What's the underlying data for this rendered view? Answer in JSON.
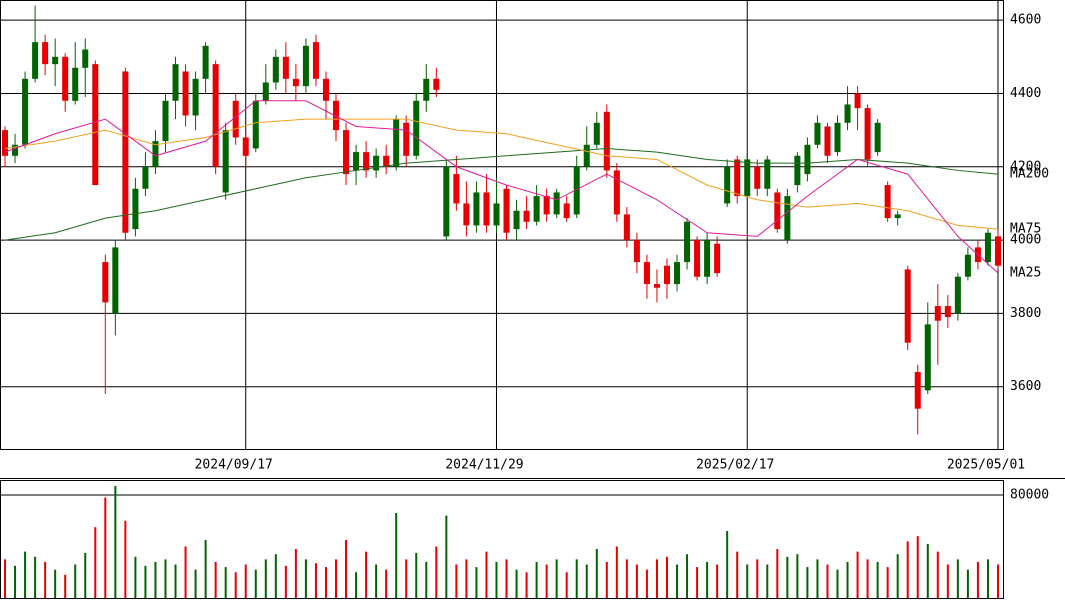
{
  "chart_data": [
    {
      "type": "candlestick",
      "up_color": "#006400",
      "down_color": "#e60000",
      "xlim": [
        -0.5,
        99.5
      ],
      "xticks": [
        {
          "value": 24,
          "label": "2024/09/17"
        },
        {
          "value": 49,
          "label": "2024/11/29"
        },
        {
          "value": 74,
          "label": "2025/02/17"
        },
        {
          "value": 99,
          "label": "2025/05/01"
        }
      ],
      "ylim": [
        3430,
        4655
      ],
      "yticks": [
        3600,
        3800,
        4000,
        4200,
        4400,
        4600
      ],
      "grid": true,
      "open": [
        4300,
        4230,
        4260,
        4440,
        4540,
        4480,
        4500,
        4380,
        4470,
        4480,
        3940,
        3800,
        4460,
        4030,
        4140,
        4200,
        4270,
        4380,
        4460,
        4340,
        4440,
        4480,
        4130,
        4380,
        4280,
        4250,
        4380,
        4430,
        4500,
        4440,
        4420,
        4540,
        4440,
        4380,
        4300,
        4190,
        4240,
        4190,
        4230,
        4200,
        4320,
        4230,
        4380,
        4440,
        4010,
        4180,
        4100,
        4040,
        4130,
        4040,
        4140,
        4030,
        4080,
        4050,
        4120,
        4070,
        4100,
        4070,
        4200,
        4260,
        4350,
        4190,
        4070,
        4000,
        3940,
        3880,
        3930,
        3880,
        3940,
        4000,
        3900,
        3990,
        4100,
        4220,
        4120,
        4200,
        4140,
        4130,
        4000,
        4150,
        4180,
        4260,
        4310,
        4240,
        4320,
        4400,
        4360,
        4240,
        4150,
        4060,
        3920,
        3640,
        3590,
        3820,
        3820,
        3800,
        3900,
        3980,
        3940,
        4010
      ],
      "high": [
        4310,
        4290,
        4460,
        4640,
        4560,
        4550,
        4510,
        4540,
        4550,
        4490,
        3960,
        4000,
        4470,
        4170,
        4240,
        4300,
        4400,
        4500,
        4480,
        4460,
        4540,
        4490,
        4320,
        4400,
        4300,
        4400,
        4480,
        4520,
        4540,
        4480,
        4550,
        4560,
        4460,
        4400,
        4320,
        4260,
        4270,
        4250,
        4260,
        4340,
        4340,
        4400,
        4480,
        4470,
        4220,
        4230,
        4160,
        4160,
        4180,
        4170,
        4150,
        4110,
        4120,
        4150,
        4140,
        4140,
        4120,
        4230,
        4310,
        4350,
        4370,
        4210,
        4090,
        4020,
        3960,
        3920,
        3950,
        3960,
        4060,
        4010,
        4020,
        4010,
        4220,
        4230,
        4230,
        4220,
        4230,
        4140,
        4140,
        4240,
        4280,
        4340,
        4320,
        4340,
        4420,
        4420,
        4370,
        4330,
        4160,
        4080,
        3930,
        3660,
        3830,
        3880,
        3850,
        3910,
        3980,
        4000,
        4030,
        4030
      ],
      "low": [
        4200,
        4210,
        4250,
        4430,
        4450,
        4420,
        4350,
        4370,
        4390,
        4150,
        3580,
        3740,
        4000,
        4010,
        4120,
        4180,
        4240,
        4330,
        4310,
        4300,
        4400,
        4180,
        4110,
        4260,
        4200,
        4240,
        4370,
        4410,
        4400,
        4380,
        4400,
        4420,
        4330,
        4270,
        4150,
        4150,
        4170,
        4170,
        4180,
        4190,
        4200,
        4220,
        4350,
        4390,
        4000,
        4080,
        4010,
        4020,
        4020,
        4020,
        4000,
        4000,
        4030,
        4040,
        4050,
        4060,
        4050,
        4060,
        4190,
        4250,
        4170,
        4050,
        3980,
        3910,
        3840,
        3830,
        3840,
        3860,
        3920,
        3890,
        3880,
        3900,
        4090,
        4100,
        4110,
        4120,
        4120,
        4020,
        3990,
        4130,
        4160,
        4250,
        4210,
        4230,
        4300,
        4300,
        4200,
        4230,
        4050,
        4040,
        3700,
        3470,
        3580,
        3660,
        3760,
        3780,
        3890,
        3920,
        3930,
        3920
      ],
      "close": [
        4230,
        4260,
        4440,
        4540,
        4480,
        4500,
        4380,
        4470,
        4520,
        4150,
        3830,
        3980,
        4020,
        4140,
        4200,
        4270,
        4380,
        4480,
        4340,
        4440,
        4530,
        4200,
        4300,
        4280,
        4230,
        4380,
        4430,
        4500,
        4440,
        4420,
        4530,
        4440,
        4380,
        4300,
        4180,
        4240,
        4190,
        4230,
        4200,
        4330,
        4230,
        4380,
        4440,
        4410,
        4200,
        4100,
        4040,
        4130,
        4040,
        4100,
        4020,
        4080,
        4050,
        4120,
        4070,
        4130,
        4060,
        4200,
        4260,
        4320,
        4190,
        4070,
        4000,
        3940,
        3880,
        3870,
        3880,
        3940,
        4050,
        3900,
        4000,
        3910,
        4200,
        4120,
        4220,
        4140,
        4220,
        4030,
        4120,
        4230,
        4260,
        4320,
        4230,
        4320,
        4370,
        4360,
        4220,
        4320,
        4060,
        4070,
        3720,
        3540,
        3770,
        3780,
        3790,
        3900,
        3960,
        3940,
        4020,
        3930
      ],
      "lines": [
        {
          "name": "MA200",
          "color": "#1e6a1e",
          "x": [
            0,
            5,
            10,
            15,
            20,
            25,
            30,
            35,
            40,
            45,
            50,
            55,
            60,
            65,
            70,
            75,
            80,
            85,
            90,
            95,
            99
          ],
          "values": [
            4000,
            4020,
            4060,
            4080,
            4110,
            4140,
            4170,
            4190,
            4210,
            4220,
            4230,
            4240,
            4250,
            4240,
            4220,
            4210,
            4210,
            4220,
            4210,
            4190,
            4180
          ]
        },
        {
          "name": "MA75",
          "color": "#f0a020",
          "x": [
            0,
            5,
            10,
            15,
            20,
            25,
            30,
            35,
            40,
            45,
            50,
            55,
            60,
            65,
            70,
            75,
            80,
            85,
            90,
            95,
            99
          ],
          "values": [
            4250,
            4270,
            4300,
            4260,
            4280,
            4320,
            4330,
            4330,
            4330,
            4300,
            4290,
            4260,
            4230,
            4220,
            4150,
            4110,
            4090,
            4100,
            4080,
            4040,
            4030
          ]
        },
        {
          "name": "MA25",
          "color": "#e0189a",
          "x": [
            0,
            5,
            10,
            15,
            20,
            25,
            30,
            35,
            40,
            45,
            50,
            55,
            60,
            65,
            70,
            75,
            80,
            85,
            90,
            95,
            99
          ],
          "values": [
            4240,
            4290,
            4330,
            4230,
            4270,
            4380,
            4380,
            4310,
            4300,
            4200,
            4150,
            4110,
            4180,
            4110,
            4020,
            4010,
            4120,
            4220,
            4180,
            4010,
            3910
          ]
        }
      ]
    },
    {
      "type": "bar",
      "ylim": [
        0,
        91600
      ],
      "yticks": [
        80000
      ],
      "values": [
        30000,
        25000,
        36000,
        32000,
        28000,
        22000,
        18000,
        26000,
        35000,
        55000,
        78000,
        87000,
        60000,
        32000,
        25000,
        28000,
        30000,
        26000,
        40000,
        22000,
        45000,
        28000,
        24000,
        20000,
        26000,
        22000,
        30000,
        34000,
        25000,
        38000,
        30000,
        27000,
        24000,
        30000,
        45000,
        20000,
        36000,
        26000,
        22000,
        66000,
        30000,
        35000,
        28000,
        40000,
        64000,
        26000,
        30000,
        24000,
        36000,
        28000,
        30000,
        22000,
        20000,
        28000,
        26000,
        30000,
        20000,
        30000,
        26000,
        38000,
        28000,
        40000,
        30000,
        26000,
        22000,
        30000,
        32000,
        26000,
        34000,
        24000,
        28000,
        26000,
        52000,
        36000,
        26000,
        30000,
        26000,
        38000,
        32000,
        34000,
        24000,
        30000,
        26000,
        22000,
        28000,
        36000,
        30000,
        28000,
        24000,
        34000,
        44000,
        48000,
        42000,
        36000,
        26000,
        30000,
        22000,
        28000,
        30000,
        26000
      ]
    }
  ]
}
